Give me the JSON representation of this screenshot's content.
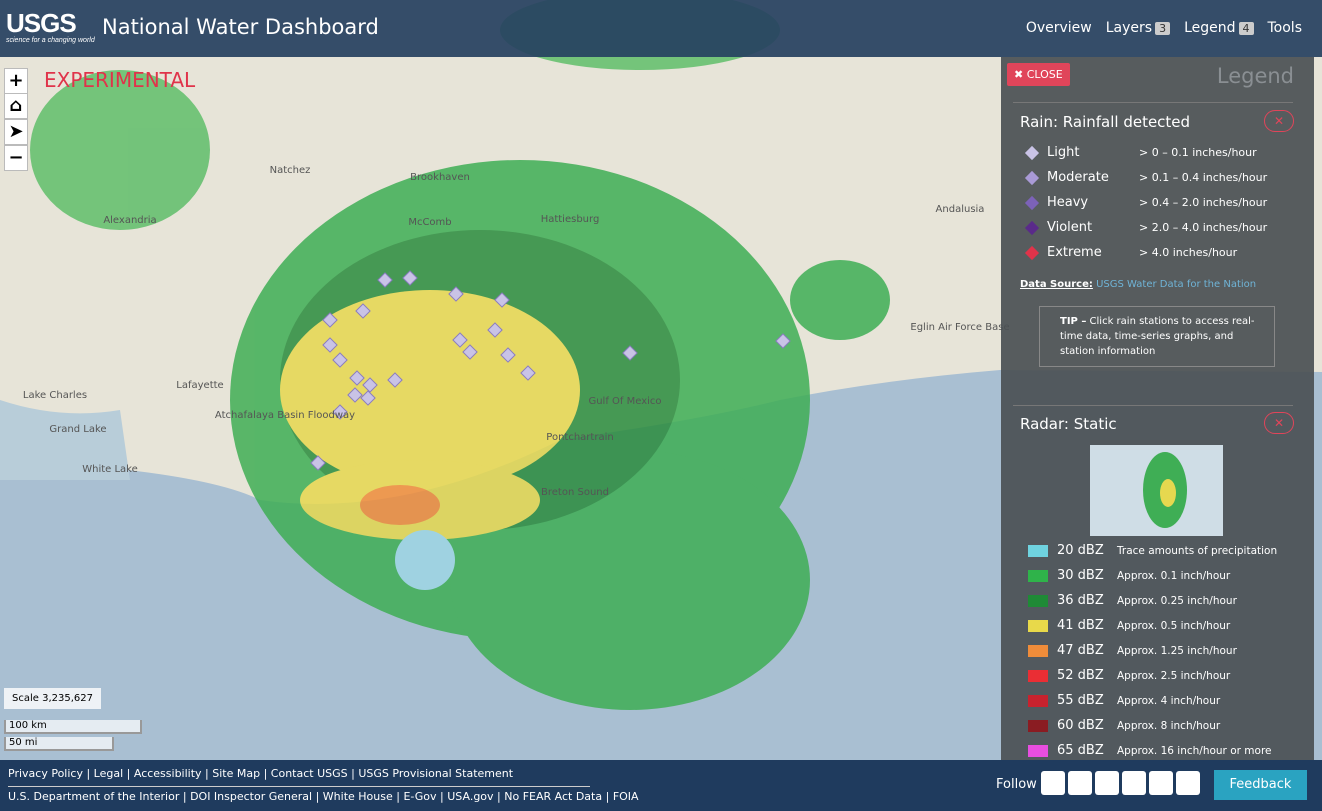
{
  "header": {
    "logo": "USGS",
    "tagline": "science for a changing world",
    "title": "National Water Dashboard",
    "nav": [
      {
        "label": "Overview"
      },
      {
        "label": "Layers",
        "badge": 3
      },
      {
        "label": "Legend",
        "badge": 4
      },
      {
        "label": "Tools"
      }
    ]
  },
  "map": {
    "experimental": "EXPERIMENTAL",
    "controls": [
      "+",
      "−"
    ],
    "places": [
      "Natchez",
      "Brookhaven",
      "McComb",
      "Hattiesburg",
      "Alexandria",
      "Lafayette",
      "Lake Charles",
      "Grand Lake",
      "White Lake",
      "Gulf Of Mexico",
      "Andalusia",
      "Eglin Air Force Base",
      "Breton Sound",
      "Pontchartrain",
      "Atchafalaya Basin Floodway"
    ],
    "scale": "Scale 3,235,627",
    "scale_km": "100 km",
    "scale_mi": "50 mi"
  },
  "legend": {
    "close": "CLOSE",
    "title": "Legend",
    "rain": {
      "title": "Rain: Rainfall detected",
      "items": [
        {
          "label": "Light",
          "range": "> 0 – 0.1 inches/hour",
          "color": "#c9c3e6"
        },
        {
          "label": "Moderate",
          "range": "> 0.1 – 0.4 inches/hour",
          "color": "#a99ad6"
        },
        {
          "label": "Heavy",
          "range": "> 0.4 – 2.0 inches/hour",
          "color": "#7c62b8"
        },
        {
          "label": "Violent",
          "range": "> 2.0 – 4.0 inches/hour",
          "color": "#5a2a8a"
        },
        {
          "label": "Extreme",
          "range": "> 4.0 inches/hour",
          "color": "#e0334a"
        }
      ],
      "source_label": "Data Source:",
      "source_link": "USGS Water Data for the Nation",
      "tip_label": "TIP –",
      "tip": "Click rain stations to access real-time data, time-series graphs, and station information"
    },
    "radar": {
      "title": "Radar: Static",
      "items": [
        {
          "dbz": "20 dBZ",
          "desc": "Trace amounts of precipitation",
          "color": "#6fd3e0"
        },
        {
          "dbz": "30 dBZ",
          "desc": "Approx. 0.1 inch/hour",
          "color": "#2fb34a"
        },
        {
          "dbz": "36 dBZ",
          "desc": "Approx. 0.25 inch/hour",
          "color": "#1f8a36"
        },
        {
          "dbz": "41 dBZ",
          "desc": "Approx. 0.5 inch/hour",
          "color": "#e8d94a"
        },
        {
          "dbz": "47 dBZ",
          "desc": "Approx. 1.25 inch/hour",
          "color": "#ef8c3a"
        },
        {
          "dbz": "52 dBZ",
          "desc": "Approx. 2.5 inch/hour",
          "color": "#ea2e34"
        },
        {
          "dbz": "55 dBZ",
          "desc": "Approx. 4 inch/hour",
          "color": "#c8222e"
        },
        {
          "dbz": "60 dBZ",
          "desc": "Approx. 8 inch/hour",
          "color": "#8a1c22"
        },
        {
          "dbz": "65 dBZ",
          "desc": "Approx. 16 inch/hour or more",
          "color": "#e84ee0"
        }
      ]
    }
  },
  "footer": {
    "links_top": [
      "Privacy Policy",
      "Legal",
      "Accessibility",
      "Site Map",
      "Contact USGS",
      "USGS Provisional Statement"
    ],
    "links_bottom": [
      "U.S. Department of the Interior",
      "DOI Inspector General",
      "White House",
      "E-Gov",
      "USA.gov",
      "No FEAR Act Data",
      "FOIA"
    ],
    "follow": "Follow",
    "feedback": "Feedback"
  }
}
